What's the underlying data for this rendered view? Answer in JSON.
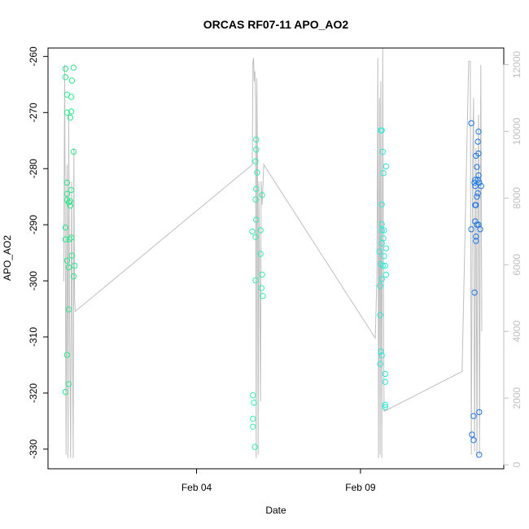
{
  "chart_data": {
    "type": "scatter",
    "title": "ORCAS RF07-11 APO_AO2",
    "xlabel": "Date",
    "ylabel": "APO_AO2",
    "x_ticks": [
      "Feb 04",
      "Feb 09"
    ],
    "xlim": [
      -0.53,
      13.37
    ],
    "ylim": [
      -333.5,
      -258.5
    ],
    "y_ticks": [
      -330,
      -320,
      -310,
      -300,
      -290,
      -280,
      -270,
      -260
    ],
    "y2lim": [
      -120,
      12500
    ],
    "y2_ticks": [
      0,
      2000,
      4000,
      6000,
      8000,
      10000,
      12000
    ],
    "legend": "none",
    "grid": false,
    "colors": {
      "rf07": "#2ee88a",
      "rf08": "#33f0ad",
      "rf09": "#2ee8d8",
      "rf11": "#1e78e6",
      "altitude_line": "#bfbfbf"
    },
    "series": [
      {
        "color": "#2ee88a",
        "points": [
          {
            "x": 0.0,
            "y": -262.2
          },
          {
            "x": 0.0,
            "y": -263.7
          },
          {
            "x": 0.05,
            "y": -266.8
          },
          {
            "x": 0.05,
            "y": -270.0
          },
          {
            "x": 0.05,
            "y": -282.5
          },
          {
            "x": 0.05,
            "y": -284.5
          },
          {
            "x": 0.05,
            "y": -285.6
          },
          {
            "x": 0.0,
            "y": -290.5
          },
          {
            "x": 0.0,
            "y": -292.6
          },
          {
            "x": 0.05,
            "y": -296.4
          },
          {
            "x": 0.1,
            "y": -297.6
          },
          {
            "x": 0.1,
            "y": -305.1
          },
          {
            "x": 0.05,
            "y": -313.2
          },
          {
            "x": 0.1,
            "y": -318.4
          },
          {
            "x": 0.0,
            "y": -319.8
          },
          {
            "x": 0.25,
            "y": -262.0
          },
          {
            "x": 0.2,
            "y": -264.3
          },
          {
            "x": 0.18,
            "y": -267.2
          },
          {
            "x": 0.18,
            "y": -269.8
          },
          {
            "x": 0.15,
            "y": -270.9
          },
          {
            "x": 0.25,
            "y": -277.0
          },
          {
            "x": 0.18,
            "y": -283.8
          },
          {
            "x": 0.15,
            "y": -285.8
          },
          {
            "x": 0.15,
            "y": -286.6
          },
          {
            "x": 0.18,
            "y": -292.3
          },
          {
            "x": 0.12,
            "y": -292.6
          },
          {
            "x": 0.2,
            "y": -295.5
          },
          {
            "x": 0.28,
            "y": -297.3
          },
          {
            "x": 0.25,
            "y": -299.2
          },
          {
            "x": 0.1,
            "y": -286.0
          }
        ]
      },
      {
        "color": "#33f0ad",
        "points": [
          {
            "x": 5.82,
            "y": -274.8
          },
          {
            "x": 5.82,
            "y": -276.6
          },
          {
            "x": 5.8,
            "y": -278.7
          },
          {
            "x": 5.85,
            "y": -280.7
          },
          {
            "x": 5.82,
            "y": -283.6
          },
          {
            "x": 5.8,
            "y": -285.5
          },
          {
            "x": 6.0,
            "y": -284.7
          },
          {
            "x": 5.82,
            "y": -289.1
          },
          {
            "x": 5.7,
            "y": -291.2
          },
          {
            "x": 5.95,
            "y": -291.0
          },
          {
            "x": 5.8,
            "y": -292.2
          },
          {
            "x": 5.95,
            "y": -295.2
          },
          {
            "x": 6.0,
            "y": -298.9
          },
          {
            "x": 5.8,
            "y": -299.9
          },
          {
            "x": 5.98,
            "y": -301.3
          },
          {
            "x": 6.02,
            "y": -302.7
          },
          {
            "x": 5.72,
            "y": -320.4
          },
          {
            "x": 5.75,
            "y": -321.7
          },
          {
            "x": 5.72,
            "y": -324.6
          },
          {
            "x": 5.72,
            "y": -326.0
          },
          {
            "x": 5.78,
            "y": -329.6
          }
        ]
      },
      {
        "color": "#2ee8d8",
        "points": [
          {
            "x": 9.62,
            "y": -273.2
          },
          {
            "x": 9.65,
            "y": -273.2
          },
          {
            "x": 9.68,
            "y": -277.0
          },
          {
            "x": 9.78,
            "y": -279.6
          },
          {
            "x": 9.7,
            "y": -280.8
          },
          {
            "x": 9.65,
            "y": -286.4
          },
          {
            "x": 9.65,
            "y": -289.9
          },
          {
            "x": 9.65,
            "y": -291.0
          },
          {
            "x": 9.72,
            "y": -291.0
          },
          {
            "x": 9.7,
            "y": -292.4
          },
          {
            "x": 9.65,
            "y": -293.3
          },
          {
            "x": 9.78,
            "y": -294.2
          },
          {
            "x": 9.58,
            "y": -294.8
          },
          {
            "x": 9.72,
            "y": -295.6
          },
          {
            "x": 9.62,
            "y": -297.0
          },
          {
            "x": 9.68,
            "y": -297.3
          },
          {
            "x": 9.75,
            "y": -297.3
          },
          {
            "x": 9.78,
            "y": -298.9
          },
          {
            "x": 9.65,
            "y": -299.7
          },
          {
            "x": 9.6,
            "y": -300.9
          },
          {
            "x": 9.6,
            "y": -306.1
          },
          {
            "x": 9.62,
            "y": -312.6
          },
          {
            "x": 9.65,
            "y": -313.3
          },
          {
            "x": 9.6,
            "y": -314.8
          },
          {
            "x": 9.75,
            "y": -316.6
          },
          {
            "x": 9.75,
            "y": -318.0
          },
          {
            "x": 9.75,
            "y": -322.1
          },
          {
            "x": 9.75,
            "y": -322.5
          }
        ]
      },
      {
        "color": "#1e78e6",
        "points": [
          {
            "x": 12.38,
            "y": -271.9
          },
          {
            "x": 12.6,
            "y": -273.4
          },
          {
            "x": 12.58,
            "y": -275.2
          },
          {
            "x": 12.6,
            "y": -277.3
          },
          {
            "x": 12.52,
            "y": -277.7
          },
          {
            "x": 12.55,
            "y": -279.7
          },
          {
            "x": 12.6,
            "y": -281.2
          },
          {
            "x": 12.5,
            "y": -282.0
          },
          {
            "x": 12.58,
            "y": -282.0
          },
          {
            "x": 12.48,
            "y": -282.5
          },
          {
            "x": 12.62,
            "y": -282.5
          },
          {
            "x": 12.5,
            "y": -283.1
          },
          {
            "x": 12.68,
            "y": -283.1
          },
          {
            "x": 12.58,
            "y": -284.4
          },
          {
            "x": 12.55,
            "y": -285.0
          },
          {
            "x": 12.5,
            "y": -286.5
          },
          {
            "x": 12.52,
            "y": -286.5
          },
          {
            "x": 12.5,
            "y": -289.4
          },
          {
            "x": 12.55,
            "y": -290.0
          },
          {
            "x": 12.6,
            "y": -290.0
          },
          {
            "x": 12.38,
            "y": -290.8
          },
          {
            "x": 12.65,
            "y": -290.8
          },
          {
            "x": 12.52,
            "y": -292.1
          },
          {
            "x": 12.52,
            "y": -292.9
          },
          {
            "x": 12.48,
            "y": -302.1
          },
          {
            "x": 12.45,
            "y": -324.1
          },
          {
            "x": 12.62,
            "y": -323.4
          },
          {
            "x": 12.4,
            "y": -327.4
          },
          {
            "x": 12.45,
            "y": -328.4
          },
          {
            "x": 12.62,
            "y": -331.0
          }
        ]
      }
    ],
    "altitude_line": {
      "color": "#bfbfbf",
      "points": [
        [
          -0.05,
          5500
        ],
        [
          -0.02,
          12000
        ],
        [
          0.02,
          300
        ],
        [
          0.05,
          9000
        ],
        [
          0.08,
          200
        ],
        [
          0.1,
          10500
        ],
        [
          0.13,
          4000
        ],
        [
          0.16,
          200
        ],
        [
          0.19,
          8500
        ],
        [
          0.22,
          3000
        ],
        [
          0.24,
          200
        ],
        [
          0.26,
          9500
        ],
        [
          0.28,
          5000
        ],
        [
          0.3,
          4600
        ],
        [
          5.7,
          9000
        ],
        [
          5.72,
          12100
        ],
        [
          5.74,
          12200
        ],
        [
          5.76,
          11500
        ],
        [
          5.78,
          11800
        ],
        [
          5.8,
          11000
        ],
        [
          5.82,
          200
        ],
        [
          5.84,
          11600
        ],
        [
          5.86,
          9000
        ],
        [
          5.88,
          300
        ],
        [
          5.9,
          8500
        ],
        [
          5.92,
          6000
        ],
        [
          5.95,
          1900
        ],
        [
          5.97,
          8500
        ],
        [
          6.0,
          7800
        ],
        [
          6.05,
          9000
        ],
        [
          9.45,
          3800
        ],
        [
          9.5,
          5600
        ],
        [
          9.53,
          12200
        ],
        [
          9.55,
          200
        ],
        [
          9.58,
          11000
        ],
        [
          9.6,
          300
        ],
        [
          9.62,
          11500
        ],
        [
          9.65,
          200
        ],
        [
          9.68,
          12500
        ],
        [
          9.7,
          6000
        ],
        [
          9.72,
          1600
        ],
        [
          12.1,
          2800
        ],
        [
          12.3,
          12100
        ],
        [
          12.35,
          12100
        ],
        [
          12.38,
          300
        ],
        [
          12.42,
          9000
        ],
        [
          12.45,
          11000
        ],
        [
          12.48,
          400
        ],
        [
          12.52,
          9500
        ],
        [
          12.55,
          200
        ],
        [
          12.58,
          8000
        ],
        [
          12.6,
          10500
        ],
        [
          12.63,
          300
        ],
        [
          12.67,
          12000
        ],
        [
          12.7,
          4000
        ]
      ]
    }
  }
}
